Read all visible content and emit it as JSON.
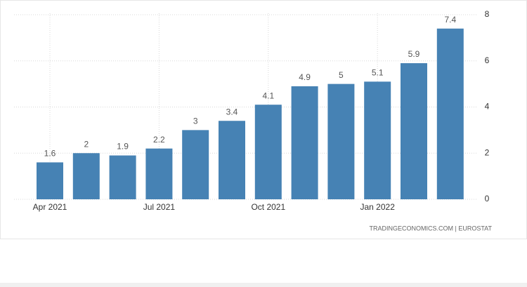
{
  "chart_data": {
    "type": "bar",
    "categories": [
      "Apr 2021",
      null,
      null,
      "Jul 2021",
      null,
      null,
      "Oct 2021",
      null,
      null,
      "Jan 2022",
      null,
      null
    ],
    "values": [
      1.6,
      2,
      1.9,
      2.2,
      3,
      3.4,
      4.1,
      4.9,
      5,
      5.1,
      5.9,
      7.4
    ],
    "color": "#4682b4",
    "ylim": [
      0,
      8
    ],
    "yticks": [
      0,
      2,
      4,
      6,
      8
    ],
    "grid": true,
    "source": "TRADINGECONOMICS.COM | EUROSTAT"
  }
}
